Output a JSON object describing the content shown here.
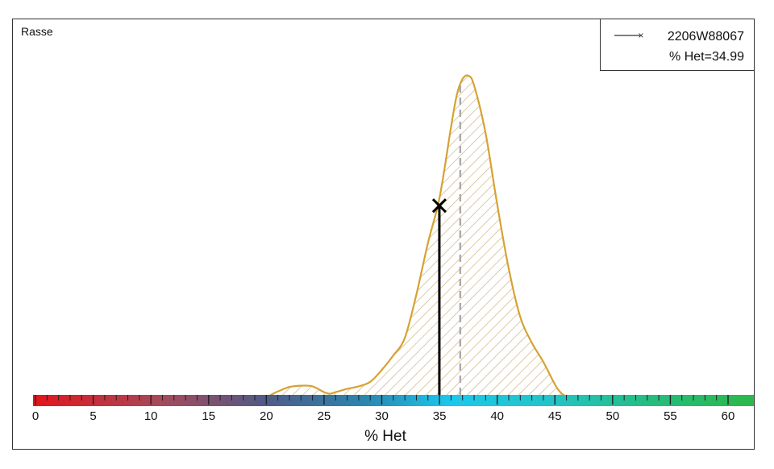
{
  "chart_data": {
    "type": "area",
    "title": "Rasse",
    "xlabel": "% Het",
    "xlim": [
      0,
      60
    ],
    "xticks": [
      0,
      5,
      10,
      15,
      20,
      25,
      30,
      35,
      40,
      45,
      50,
      55,
      60
    ],
    "density": {
      "x": [
        20,
        21,
        22,
        23,
        24,
        25,
        25.5,
        26,
        27,
        28,
        29,
        30,
        31,
        32,
        33,
        34,
        35,
        36,
        36.5,
        37,
        37.5,
        38,
        39,
        40,
        41,
        42,
        43,
        44,
        45,
        45.5,
        46,
        47
      ],
      "y": [
        0,
        1.8,
        3.2,
        3.6,
        3.4,
        1.6,
        1.1,
        1.6,
        2.6,
        3.4,
        4.8,
        8.5,
        13,
        18.5,
        32,
        48,
        62,
        84,
        94,
        99,
        100,
        97,
        82,
        60,
        40,
        25,
        17,
        11,
        4,
        1.5,
        0.3,
        0
      ]
    },
    "mean_x": 36.8,
    "marker": {
      "label": "2206W88067",
      "value_label": "% Het=34.99",
      "x": 34.99,
      "y_rel": 59.6
    },
    "colors": {
      "density_line": "#d6a233",
      "hatch": "#c9b07a",
      "mean_line": "#aaaaaa",
      "marker": "#000000"
    },
    "colorbar_stops": [
      {
        "offset": 0,
        "color": "#e4151b"
      },
      {
        "offset": 0.18,
        "color": "#a54a5c"
      },
      {
        "offset": 0.32,
        "color": "#515a86"
      },
      {
        "offset": 0.46,
        "color": "#2a86b0"
      },
      {
        "offset": 0.58,
        "color": "#1bc8ec"
      },
      {
        "offset": 0.72,
        "color": "#23c4c6"
      },
      {
        "offset": 0.86,
        "color": "#25bc7e"
      },
      {
        "offset": 1,
        "color": "#2cb84a"
      }
    ]
  }
}
